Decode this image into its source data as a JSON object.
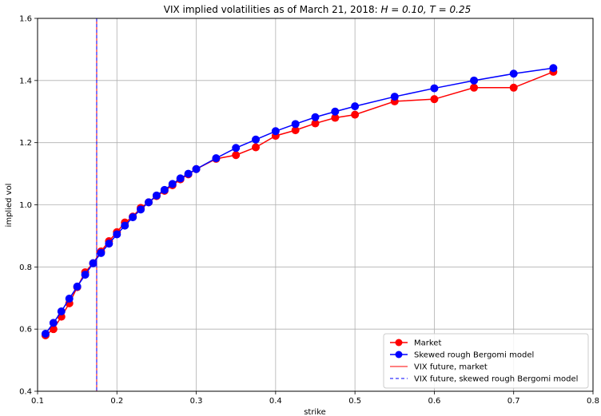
{
  "chart_data": {
    "type": "line",
    "title_prefix": "VIX implied volatilities as of March 21, 2018: ",
    "title_math": "H = 0.10, T = 0.25",
    "xlabel": "strike",
    "ylabel": "implied vol",
    "xlim": [
      0.1,
      0.8
    ],
    "ylim": [
      0.4,
      1.6
    ],
    "xticks": [
      0.1,
      0.2,
      0.3,
      0.4,
      0.5,
      0.6,
      0.7,
      0.8
    ],
    "xtick_labels": [
      "0.1",
      "0.2",
      "0.3",
      "0.4",
      "0.5",
      "0.6",
      "0.7",
      "0.8"
    ],
    "yticks": [
      0.4,
      0.6,
      0.8,
      1.0,
      1.2,
      1.4,
      1.6
    ],
    "ytick_labels": [
      "0.4",
      "0.6",
      "0.8",
      "1.0",
      "1.2",
      "1.4",
      "1.6"
    ],
    "grid": true,
    "legend_position": "lower-right",
    "series": [
      {
        "name": "Market",
        "color": "#ff0000",
        "marker": "circle",
        "x": [
          0.11,
          0.12,
          0.13,
          0.14,
          0.15,
          0.16,
          0.17,
          0.18,
          0.19,
          0.2,
          0.21,
          0.22,
          0.23,
          0.24,
          0.25,
          0.26,
          0.27,
          0.28,
          0.29,
          0.3,
          0.325,
          0.35,
          0.375,
          0.4,
          0.425,
          0.45,
          0.475,
          0.5,
          0.55,
          0.6,
          0.65,
          0.7,
          0.75
        ],
        "y": [
          0.58,
          0.6,
          0.64,
          0.683,
          0.735,
          0.783,
          0.812,
          0.85,
          0.883,
          0.912,
          0.943,
          0.962,
          0.99,
          1.008,
          1.028,
          1.045,
          1.063,
          1.082,
          1.098,
          1.115,
          1.148,
          1.16,
          1.185,
          1.222,
          1.24,
          1.262,
          1.28,
          1.29,
          1.333,
          1.34,
          1.377,
          1.377,
          1.428
        ]
      },
      {
        "name": "Skewed rough Bergomi model",
        "color": "#0000ff",
        "marker": "circle",
        "x": [
          0.11,
          0.12,
          0.13,
          0.14,
          0.15,
          0.16,
          0.17,
          0.18,
          0.19,
          0.2,
          0.21,
          0.22,
          0.23,
          0.24,
          0.25,
          0.26,
          0.27,
          0.28,
          0.29,
          0.3,
          0.325,
          0.35,
          0.375,
          0.4,
          0.425,
          0.45,
          0.475,
          0.5,
          0.55,
          0.6,
          0.65,
          0.7,
          0.75
        ],
        "y": [
          0.585,
          0.62,
          0.657,
          0.698,
          0.737,
          0.775,
          0.812,
          0.845,
          0.875,
          0.905,
          0.933,
          0.96,
          0.985,
          1.008,
          1.03,
          1.048,
          1.067,
          1.085,
          1.1,
          1.115,
          1.15,
          1.183,
          1.21,
          1.237,
          1.26,
          1.282,
          1.3,
          1.317,
          1.348,
          1.375,
          1.4,
          1.422,
          1.44
        ]
      }
    ],
    "vlines": [
      {
        "name": "VIX future, market",
        "x": 0.1745,
        "color": "#ff0000",
        "style": "solid"
      },
      {
        "name": "VIX future, skewed rough Bergomi model",
        "x": 0.1745,
        "color": "#0000ff",
        "style": "dashed"
      }
    ]
  }
}
